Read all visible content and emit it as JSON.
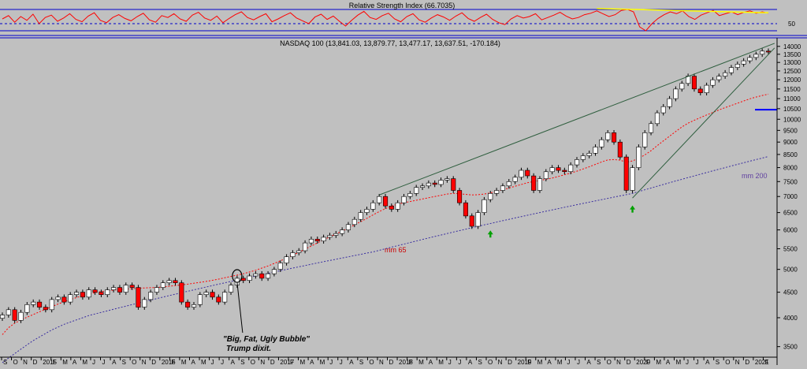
{
  "colors": {
    "background": "#c0c0c0",
    "axis_line": "#0000cc",
    "bull_candle": "#ffffff",
    "bear_candle": "#ff0000",
    "candle_outline": "#000000",
    "rsi_line": "#ff0000",
    "rsi_trendline": "#ffff00",
    "trendline": "#2e5e3e",
    "ma65": "#ff0000",
    "ma200": "#3a2ea0",
    "marker_arrow": "#00a000",
    "price_level_marker": "#0000ff",
    "ma200_label": "#6040a0"
  },
  "chart_data": [
    {
      "type": "line",
      "panel": "rsi",
      "title": "Relative Strength Index (66.7035)",
      "y_tick_labels": [
        "50"
      ],
      "ylim": [
        20,
        90
      ],
      "reference_levels": [
        70,
        50,
        30
      ],
      "series": [
        {
          "values": [
            55,
            62,
            48,
            60,
            52,
            65,
            45,
            58,
            63,
            50,
            57,
            66,
            54,
            49,
            61,
            68,
            52,
            47,
            58,
            64,
            56,
            51,
            60,
            67,
            53,
            48,
            62,
            58,
            66,
            55,
            50,
            63,
            69,
            57,
            52,
            61,
            47,
            56,
            64,
            70,
            58,
            53,
            60,
            66,
            49,
            55,
            62,
            68,
            57,
            51,
            45,
            59,
            65,
            54,
            61,
            50,
            40,
            52,
            63,
            71,
            58,
            54,
            62,
            67,
            55,
            49,
            60,
            66,
            53,
            48,
            57,
            64,
            59,
            52,
            61,
            68,
            56,
            50,
            58,
            65,
            54,
            47,
            43,
            55,
            62,
            57,
            60,
            66,
            53,
            58,
            63,
            69,
            61,
            55,
            58,
            64,
            67,
            72,
            66,
            60,
            64,
            73,
            75,
            70,
            38,
            30,
            45,
            56,
            64,
            70,
            66,
            72,
            60,
            54,
            63,
            68,
            73,
            62,
            66,
            70,
            64,
            69,
            72,
            67,
            70,
            67
          ]
        }
      ],
      "annotations": [
        {
          "type": "trendline",
          "from_index": 97,
          "to_index": 125,
          "from_value": 77,
          "to_value": 68
        }
      ]
    },
    {
      "type": "candlestick",
      "panel": "price",
      "title": "NASDAQ 100 (13,841.03, 13,879.77, 13,477.17, 13,637.51, -170.184)",
      "x_tick_labels": [
        "S",
        "O",
        "N",
        "D",
        "2015",
        "F",
        "M",
        "A",
        "M",
        "J",
        "J",
        "A",
        "S",
        "O",
        "N",
        "D",
        "2016",
        "F",
        "M",
        "A",
        "M",
        "J",
        "J",
        "A",
        "S",
        "O",
        "N",
        "D",
        "2017",
        "F",
        "M",
        "A",
        "M",
        "J",
        "J",
        "A",
        "S",
        "O",
        "N",
        "D",
        "2018",
        "F",
        "M",
        "A",
        "M",
        "J",
        "J",
        "A",
        "S",
        "O",
        "N",
        "D",
        "2019",
        "F",
        "M",
        "A",
        "M",
        "J",
        "J",
        "A",
        "S",
        "O",
        "N",
        "D",
        "2020",
        "F",
        "M",
        "A",
        "M",
        "J",
        "J",
        "A",
        "S",
        "O",
        "N",
        "D",
        "2021",
        "F"
      ],
      "y_tick_labels": [
        "14000",
        "13500",
        "13000",
        "12500",
        "12000",
        "11500",
        "11000",
        "10500",
        "10000",
        "9500",
        "9000",
        "8500",
        "8000",
        "7500",
        "7000",
        "6500",
        "6000",
        "5500",
        "5000",
        "4500",
        "4000",
        "3500"
      ],
      "yscale": "log",
      "ylim": [
        3250,
        14300
      ],
      "close": [
        4050,
        4150,
        3950,
        4100,
        4250,
        4300,
        4200,
        4150,
        4350,
        4400,
        4300,
        4450,
        4500,
        4400,
        4550,
        4500,
        4450,
        4550,
        4600,
        4500,
        4650,
        4600,
        4200,
        4350,
        4500,
        4600,
        4700,
        4750,
        4700,
        4300,
        4200,
        4250,
        4450,
        4500,
        4400,
        4300,
        4500,
        4650,
        4800,
        4750,
        4850,
        4900,
        4800,
        4900,
        5000,
        5150,
        5300,
        5400,
        5450,
        5650,
        5750,
        5700,
        5800,
        5850,
        5900,
        6000,
        6150,
        6300,
        6500,
        6600,
        6800,
        7000,
        6700,
        6600,
        6800,
        7000,
        7100,
        7300,
        7350,
        7450,
        7400,
        7550,
        7600,
        7200,
        6800,
        6400,
        6100,
        6500,
        6900,
        7100,
        7200,
        7350,
        7500,
        7650,
        7900,
        7700,
        7200,
        7600,
        7850,
        8000,
        7900,
        7850,
        8100,
        8300,
        8450,
        8550,
        8800,
        9100,
        9400,
        9000,
        8400,
        7200,
        8000,
        8800,
        9400,
        9800,
        10300,
        10600,
        11000,
        11500,
        11800,
        12200,
        11500,
        11300,
        11700,
        12000,
        12200,
        12400,
        12700,
        12900,
        13100,
        13300,
        13500,
        13700,
        13641
      ],
      "series": [
        {
          "name": "mm 65",
          "values": [
            3700,
            3820,
            3900,
            3960,
            4010,
            4060,
            4110,
            4160,
            4210,
            4260,
            4310,
            4350,
            4390,
            4430,
            4460,
            4490,
            4515,
            4530,
            4545,
            4555,
            4565,
            4575,
            4585,
            4590,
            4595,
            4600,
            4610,
            4625,
            4640,
            4655,
            4670,
            4690,
            4710,
            4730,
            4755,
            4780,
            4810,
            4840,
            4870,
            4900,
            4940,
            4980,
            5030,
            5080,
            5140,
            5200,
            5270,
            5340,
            5410,
            5490,
            5570,
            5650,
            5730,
            5810,
            5890,
            5970,
            6050,
            6140,
            6230,
            6330,
            6430,
            6530,
            6620,
            6700,
            6760,
            6800,
            6840,
            6880,
            6920,
            6960,
            7000,
            7040,
            7080,
            7100,
            7090,
            7070,
            7050,
            7060,
            7080,
            7120,
            7170,
            7220,
            7280,
            7340,
            7400,
            7460,
            7500,
            7540,
            7580,
            7620,
            7680,
            7740,
            7800,
            7870,
            7950,
            8030,
            8120,
            8210,
            8290,
            8300,
            8280,
            8200,
            8250,
            8350,
            8480,
            8650,
            8850,
            9050,
            9250,
            9450,
            9650,
            9820,
            9950,
            10080,
            10200,
            10320,
            10440,
            10550,
            10660,
            10770,
            10880,
            10990,
            11080,
            11160,
            11230
          ]
        },
        {
          "name": "mm 200",
          "values": [
            3250,
            3320,
            3390,
            3460,
            3530,
            3600,
            3660,
            3720,
            3780,
            3830,
            3880,
            3920,
            3960,
            4000,
            4040,
            4070,
            4100,
            4130,
            4160,
            4190,
            4220,
            4250,
            4280,
            4310,
            4340,
            4370,
            4400,
            4430,
            4460,
            4490,
            4520,
            4550,
            4580,
            4610,
            4640,
            4670,
            4700,
            4730,
            4760,
            4790,
            4820,
            4850,
            4880,
            4910,
            4940,
            4970,
            5000,
            5030,
            5060,
            5090,
            5120,
            5150,
            5180,
            5210,
            5240,
            5270,
            5300,
            5330,
            5360,
            5390,
            5420,
            5460,
            5500,
            5540,
            5580,
            5620,
            5660,
            5700,
            5740,
            5780,
            5820,
            5860,
            5900,
            5940,
            5980,
            6020,
            6060,
            6100,
            6140,
            6180,
            6220,
            6260,
            6300,
            6340,
            6380,
            6420,
            6460,
            6500,
            6540,
            6580,
            6620,
            6660,
            6700,
            6740,
            6780,
            6820,
            6860,
            6900,
            6940,
            6980,
            7020,
            7060,
            7100,
            7160,
            7220,
            7280,
            7340,
            7400,
            7460,
            7520,
            7580,
            7640,
            7700,
            7760,
            7820,
            7880,
            7940,
            8000,
            8060,
            8120,
            8180,
            8240,
            8300,
            8360,
            8420
          ]
        }
      ],
      "annotations": [
        {
          "type": "trendline",
          "from_index": 61,
          "to_index": 125,
          "from_value": 7050,
          "to_value": 14200
        },
        {
          "type": "trendline",
          "from_index": 102,
          "to_index": 125,
          "from_value": 6950,
          "to_value": 13900
        },
        {
          "type": "arrow",
          "index": 79,
          "value": 5900
        },
        {
          "type": "arrow",
          "index": 102,
          "value": 6620
        },
        {
          "type": "circle",
          "index": 38,
          "value": 4850
        },
        {
          "type": "level",
          "value": 10450
        }
      ],
      "labels": {
        "ma65": "mm 65",
        "ma200": "mm 200",
        "note_line1": "\"Big, Fat, Ugly Bubble\"",
        "note_line2": "Trump dixit."
      }
    }
  ]
}
